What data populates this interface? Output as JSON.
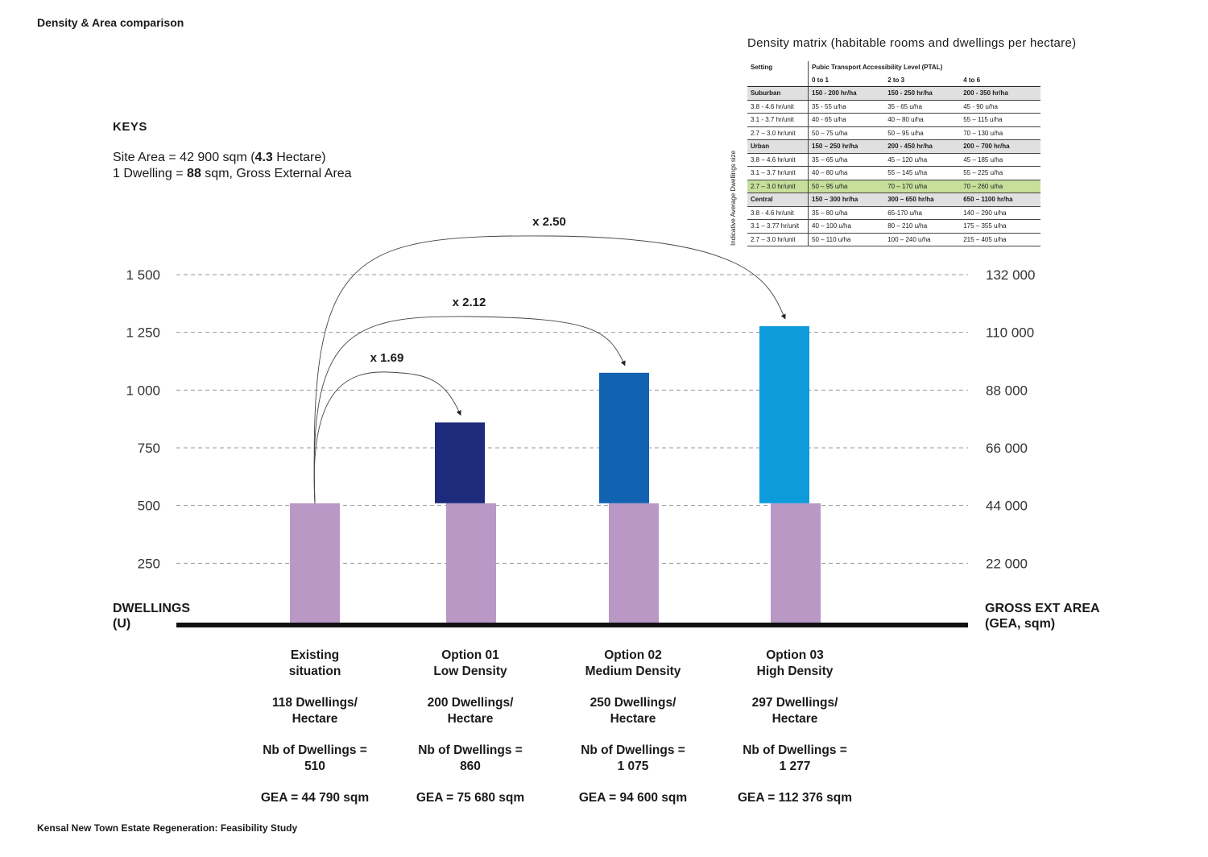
{
  "page": {
    "title": "Density & Area comparison",
    "footer": "Kensal New Town Estate Regeneration: Feasibility Study"
  },
  "keys": {
    "title": "KEYS",
    "site_area_prefix": "Site Area = 42 900 sqm (",
    "site_area_bold": "4.3",
    "site_area_suffix": " Hectare)",
    "dwelling_prefix": "1 Dwelling = ",
    "dwelling_bold": "88",
    "dwelling_suffix": " sqm, Gross External Area"
  },
  "colors": {
    "existing": "#b998c6",
    "option01": "#1e2a7c",
    "option02": "#1262b2",
    "option03": "#0e9bdb",
    "baseline": "#111111",
    "grid": "#9a9a9a",
    "highlight": "#c6df9a"
  },
  "chart_data": {
    "type": "bar",
    "left_axis": {
      "label_line1": "DWELLINGS",
      "label_line2": "(U)",
      "ticks": [
        250,
        500,
        750,
        1000,
        1250,
        1500
      ],
      "tick_labels": [
        "250",
        "500",
        "750",
        "1 000",
        "1 250",
        "1 500"
      ],
      "ylim": [
        0,
        1500
      ]
    },
    "right_axis": {
      "label_line1": "GROSS EXT AREA",
      "label_line2": "(GEA, sqm)",
      "tick_labels": [
        "22 000",
        "44 000",
        "66 000",
        "88 000",
        "110 000",
        "132 000"
      ]
    },
    "grid": true,
    "categories": [
      "Existing situation",
      "Option 01 Low Density",
      "Option 02 Medium Density",
      "Option 03 High Density"
    ],
    "existing_base": 510,
    "bars": [
      {
        "key": "existing",
        "base": 510,
        "total": 510
      },
      {
        "key": "option01",
        "base": 510,
        "total": 860
      },
      {
        "key": "option02",
        "base": 510,
        "total": 1075
      },
      {
        "key": "option03",
        "base": 510,
        "total": 1277
      }
    ],
    "multipliers": [
      {
        "label": "x 1.69",
        "to": 1
      },
      {
        "label": "x 2.12",
        "to": 2
      },
      {
        "label": "x 2.50",
        "to": 3
      }
    ]
  },
  "options": [
    {
      "name_line1": "Existing",
      "name_line2": "situation",
      "density_line1": "118 Dwellings/",
      "density_line2": "Hectare",
      "nb_line1": "Nb of Dwellings =",
      "nb_line2": "510",
      "gea": "GEA = 44 790 sqm"
    },
    {
      "name_line1": "Option 01",
      "name_line2": "Low Density",
      "density_line1": "200 Dwellings/",
      "density_line2": "Hectare",
      "nb_line1": "Nb of Dwellings  =",
      "nb_line2": "860",
      "gea": "GEA = 75 680 sqm"
    },
    {
      "name_line1": "Option 02",
      "name_line2": "Medium Density",
      "density_line1": "250 Dwellings/",
      "density_line2": "Hectare",
      "nb_line1": "Nb of Dwellings =",
      "nb_line2": "1 075",
      "gea": "GEA = 94 600 sqm"
    },
    {
      "name_line1": "Option 03",
      "name_line2": "High Density",
      "density_line1": "297 Dwellings/",
      "density_line2": "Hectare",
      "nb_line1": "Nb of Dwellings =",
      "nb_line2": "1 277",
      "gea": "GEA = 112 376 sqm"
    }
  ],
  "matrix": {
    "title": "Density matrix (habitable rooms and dwellings per hectare)",
    "side_label": "Indicative Average Dwellings size",
    "header_setting": "Setting",
    "header_ptal": "Pubic Transport Accessibility Level (PTAL)",
    "ptal_cols": [
      "0 to 1",
      "2 to 3",
      "4 to 6"
    ],
    "rows": [
      {
        "type": "setting",
        "cells": [
          "Suburban",
          "150 - 200 hr/ha",
          "150 - 250 hr/ha",
          "200 - 350 hr/ha"
        ]
      },
      {
        "type": "row",
        "cells": [
          "3.8 - 4.6 hr/unit",
          "35 - 55 u/ha",
          "35 - 65 u/ha",
          "45 - 90 u/ha"
        ]
      },
      {
        "type": "row",
        "cells": [
          "3.1 - 3.7 hr/unit",
          "40 - 65 u/ha",
          "40 – 80 u/ha",
          "55 – 115 u/ha"
        ]
      },
      {
        "type": "row",
        "cells": [
          "2.7 – 3.0 hr/unit",
          "50 – 75 u/ha",
          "50 – 95 u/ha",
          "70 – 130 u/ha"
        ]
      },
      {
        "type": "setting",
        "cells": [
          "Urban",
          "150 – 250 hr/ha",
          "200 - 450 hr/ha",
          "200 – 700 hr/ha"
        ]
      },
      {
        "type": "row",
        "cells": [
          "3.8 – 4.6 hr/unit",
          "35 – 65 u/ha",
          "45 – 120 u/ha",
          "45 – 185 u/ha"
        ]
      },
      {
        "type": "row",
        "cells": [
          "3.1 – 3.7 hr/unit",
          "40 – 80 u/ha",
          "55 – 145 u/ha",
          "55 – 225 u/ha"
        ]
      },
      {
        "type": "hl",
        "cells": [
          "2.7 – 3.0 hr/unit",
          "50 – 95 u/ha",
          "70 – 170 u/ha",
          "70 – 260 u/ha"
        ]
      },
      {
        "type": "setting",
        "cells": [
          "Central",
          "150 – 300 hr/ha",
          "300 – 650 hr/ha",
          "650 – 1100 hr/ha"
        ]
      },
      {
        "type": "row",
        "cells": [
          "3.8 - 4.6 hr/unit",
          "35 – 80 u/ha",
          "65-170 u/ha",
          "140 – 290 u/ha"
        ]
      },
      {
        "type": "row",
        "cells": [
          "3.1 – 3.77 hr/unit",
          "40 – 100 u/ha",
          "80 – 210 u/ha",
          "175 – 355 u/ha"
        ]
      },
      {
        "type": "row",
        "cells": [
          "2.7 – 3.0 hr/unit",
          "50 – 110 u/ha",
          "100 – 240 u/ha",
          "215 – 405 u/ha"
        ]
      }
    ]
  }
}
